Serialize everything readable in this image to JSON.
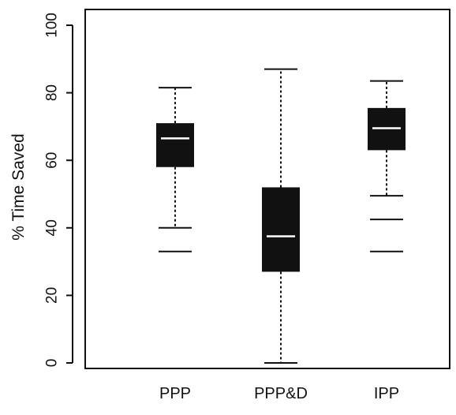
{
  "chart_data": {
    "type": "boxplot",
    "title": "",
    "xlabel": "",
    "ylabel": "% Time Saved",
    "ylim": [
      0,
      100
    ],
    "yticks": [
      0,
      20,
      40,
      60,
      80,
      100
    ],
    "categories": [
      "PPP",
      "PPP&D",
      "IPP"
    ],
    "boxes": [
      {
        "category": "PPP",
        "whisker_low": 40,
        "q1": 58,
        "median": 66.5,
        "q3": 71,
        "whisker_high": 81.5,
        "outliers": [
          33
        ]
      },
      {
        "category": "PPP&D",
        "whisker_low": 0,
        "q1": 27,
        "median": 37.5,
        "q3": 52,
        "whisker_high": 87,
        "outliers": []
      },
      {
        "category": "IPP",
        "whisker_low": 49.5,
        "q1": 63,
        "median": 69.5,
        "q3": 75.5,
        "whisker_high": 83.5,
        "outliers": [
          42.5,
          33
        ]
      }
    ],
    "grid": false,
    "colors": {
      "box": "#111111",
      "median": "#ffffff",
      "line": "#111111"
    }
  }
}
